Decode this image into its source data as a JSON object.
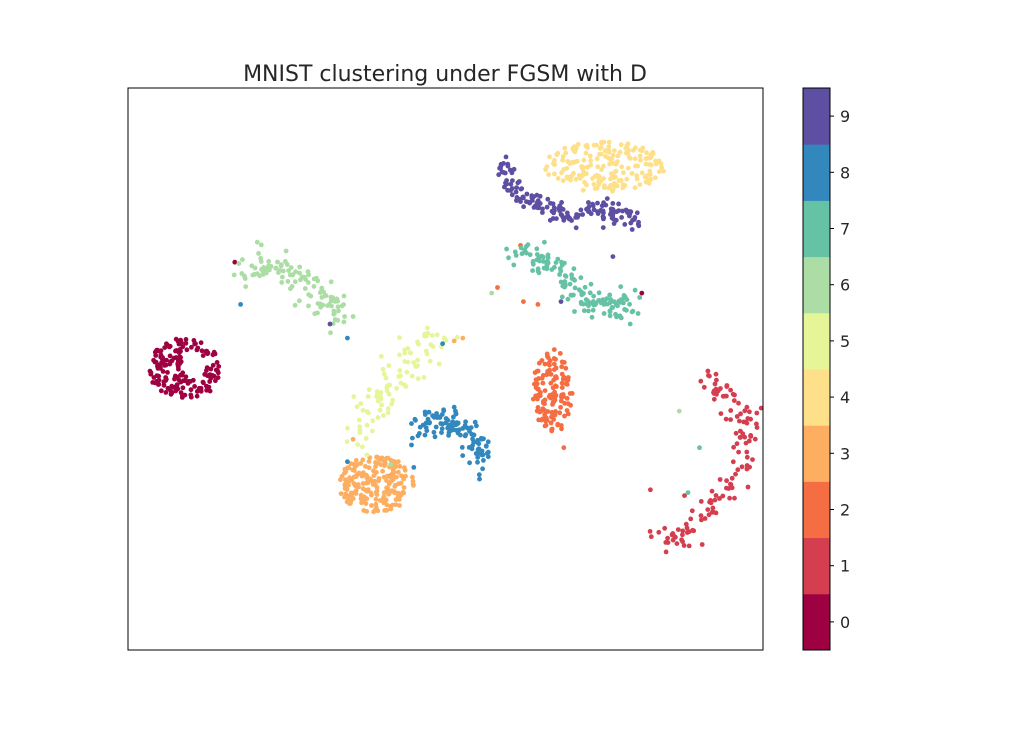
{
  "chart_data": {
    "type": "scatter",
    "title": "MNIST clustering under FGSM with D",
    "xlabel": "",
    "ylabel": "",
    "grid": false,
    "colorbar": {
      "ticks": [
        "0",
        "1",
        "2",
        "3",
        "4",
        "5",
        "6",
        "7",
        "8",
        "9"
      ],
      "colors": [
        "#9e0142",
        "#d53e4f",
        "#f46d43",
        "#fdae61",
        "#fee08b",
        "#e6f598",
        "#abdda4",
        "#66c2a5",
        "#3288bd",
        "#5e4fa2"
      ],
      "placement": "right"
    },
    "series": [
      {
        "label": "0",
        "color": "#9e0142",
        "clusters": [
          {
            "kind": "ellipse",
            "cx": 1.0,
            "cy": 5.0,
            "rx": 0.65,
            "ry": 0.55,
            "n": 170
          },
          {
            "kind": "ellipse",
            "cx": 1.15,
            "cy": 5.05,
            "rx": 0.22,
            "ry": 0.22,
            "n": 0,
            "hole": true
          }
        ],
        "points": [
          [
            1.85,
            6.9
          ],
          [
            8.9,
            6.35
          ],
          [
            4.55,
            3.1
          ]
        ]
      },
      {
        "label": "1",
        "color": "#d53e4f",
        "clusters": [
          {
            "kind": "path",
            "pts": [
              [
                10.0,
                4.85
              ],
              [
                10.35,
                4.5
              ],
              [
                10.7,
                4.1
              ],
              [
                10.65,
                3.5
              ],
              [
                10.4,
                2.9
              ],
              [
                10.0,
                2.4
              ],
              [
                9.55,
                2.0
              ],
              [
                9.2,
                1.95
              ]
            ],
            "spread": 0.12,
            "n": 130
          }
        ],
        "points": [
          [
            9.05,
            2.85
          ]
        ]
      },
      {
        "label": "2",
        "color": "#f46d43",
        "clusters": [
          {
            "kind": "ellipse",
            "cx": 7.35,
            "cy": 4.6,
            "rx": 0.35,
            "ry": 0.75,
            "n": 130
          }
        ],
        "points": [
          [
            6.85,
            6.2
          ],
          [
            7.1,
            6.15
          ],
          [
            6.4,
            6.45
          ],
          [
            7.55,
            3.6
          ],
          [
            6.8,
            7.2
          ]
        ]
      },
      {
        "label": "3",
        "color": "#fdae61",
        "clusters": [
          {
            "kind": "ellipse",
            "cx": 4.3,
            "cy": 2.95,
            "rx": 0.65,
            "ry": 0.5,
            "n": 200
          }
        ],
        "points": [
          [
            5.65,
            5.5
          ],
          [
            5.8,
            5.55
          ],
          [
            3.9,
            3.75
          ]
        ]
      },
      {
        "label": "4",
        "color": "#fee08b",
        "clusters": [
          {
            "kind": "ellipse",
            "cx": 8.25,
            "cy": 8.6,
            "rx": 1.05,
            "ry": 0.45,
            "n": 190
          }
        ],
        "points": []
      },
      {
        "label": "5",
        "color": "#e6f598",
        "clusters": [
          {
            "kind": "path",
            "pts": [
              [
                3.95,
                3.7
              ],
              [
                4.2,
                4.3
              ],
              [
                4.6,
                4.8
              ],
              [
                5.0,
                5.25
              ],
              [
                5.45,
                5.55
              ]
            ],
            "spread": 0.18,
            "n": 90
          }
        ],
        "points": []
      },
      {
        "label": "6",
        "color": "#abdda4",
        "clusters": [
          {
            "kind": "path",
            "pts": [
              [
                2.0,
                6.8
              ],
              [
                2.6,
                6.85
              ],
              [
                3.0,
                6.6
              ],
              [
                3.4,
                6.25
              ],
              [
                3.65,
                5.9
              ]
            ],
            "spread": 0.14,
            "n": 110
          }
        ],
        "points": [
          [
            4.55,
            3.3
          ],
          [
            6.3,
            6.35
          ],
          [
            9.55,
            4.25
          ]
        ]
      },
      {
        "label": "7",
        "color": "#66c2a5",
        "clusters": [
          {
            "kind": "path",
            "pts": [
              [
                6.65,
                7.1
              ],
              [
                7.1,
                6.95
              ],
              [
                7.55,
                6.7
              ],
              [
                7.9,
                6.25
              ],
              [
                8.35,
                6.05
              ],
              [
                8.8,
                6.25
              ]
            ],
            "spread": 0.12,
            "n": 140
          }
        ],
        "points": [
          [
            9.7,
            2.8
          ],
          [
            9.9,
            3.6
          ],
          [
            8.7,
            5.8
          ]
        ]
      },
      {
        "label": "8",
        "color": "#3288bd",
        "clusters": [
          {
            "kind": "path",
            "pts": [
              [
                5.0,
                3.85
              ],
              [
                5.4,
                4.1
              ],
              [
                5.75,
                4.0
              ],
              [
                6.05,
                3.65
              ],
              [
                6.2,
                3.3
              ]
            ],
            "spread": 0.14,
            "n": 110
          }
        ],
        "points": [
          [
            1.95,
            6.15
          ],
          [
            4.95,
            3.25
          ],
          [
            5.45,
            5.45
          ],
          [
            3.8,
            5.55
          ],
          [
            3.8,
            3.35
          ]
        ]
      },
      {
        "label": "9",
        "color": "#5e4fa2",
        "clusters": [
          {
            "kind": "path",
            "pts": [
              [
                6.45,
                8.8
              ],
              [
                6.6,
                8.3
              ],
              [
                6.9,
                8.0
              ],
              [
                7.3,
                7.9
              ],
              [
                7.7,
                7.7
              ],
              [
                8.1,
                7.85
              ],
              [
                8.5,
                7.75
              ],
              [
                8.85,
                7.6
              ]
            ],
            "spread": 0.1,
            "n": 150
          }
        ],
        "points": [
          [
            8.4,
            7.0
          ],
          [
            7.5,
            6.2
          ],
          [
            3.5,
            5.8
          ]
        ]
      }
    ],
    "xlim": [
      0,
      11
    ],
    "ylim": [
      0,
      10
    ]
  }
}
